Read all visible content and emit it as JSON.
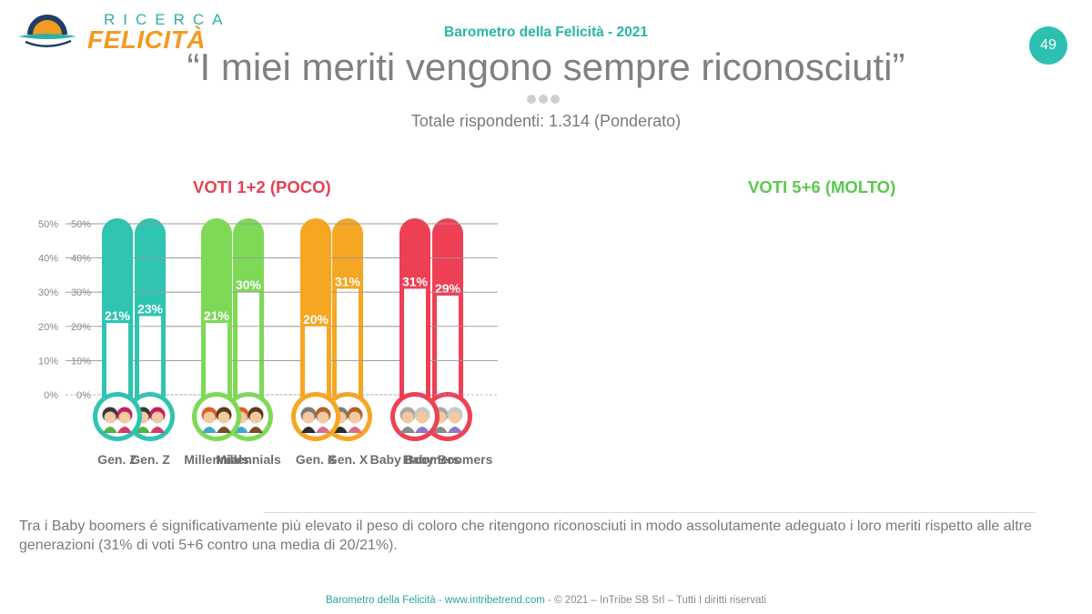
{
  "brand": {
    "line1": "RICERCA",
    "line2": "FELICITÀ",
    "colors": {
      "teal": "#2fb0a4",
      "orange": "#f39a22",
      "navy": "#1f3f66"
    }
  },
  "header": {
    "subtitle": "Barometro della Felicità - 2021",
    "slide_number": "49",
    "title": "“I miei meriti vengono sempre riconosciuti”",
    "respondents": "Totale rispondenti: 1.314 (Ponderato)"
  },
  "chart_data": [
    {
      "type": "bar",
      "title": "VOTI 1+2 (POCO)",
      "title_color": "#e64254",
      "categories": [
        "Gen. Z",
        "Millennials",
        "Gen. X",
        "Baby Boomers"
      ],
      "values": [
        23,
        30,
        31,
        29
      ],
      "value_labels": [
        "23%",
        "30%",
        "31%",
        "29%"
      ],
      "colors": [
        "#2ec4b0",
        "#7ed957",
        "#f5a623",
        "#ee4054"
      ],
      "ylim": [
        0,
        50
      ],
      "y_ticks": [
        0,
        10,
        20,
        30,
        40,
        50
      ],
      "y_tick_labels": [
        "0%",
        "10%",
        "20%",
        "30%",
        "40%",
        "50%"
      ],
      "grid": true,
      "style": "thermometer"
    },
    {
      "type": "bar",
      "title": "VOTI 5+6 (MOLTO)",
      "title_color": "#5ac94e",
      "categories": [
        "Gen. Z",
        "Millennials",
        "Gen. X",
        "Baby Boomers"
      ],
      "values": [
        21,
        21,
        20,
        31
      ],
      "value_labels": [
        "21%",
        "21%",
        "20%",
        "31%"
      ],
      "colors": [
        "#2ec4b0",
        "#7ed957",
        "#f5a623",
        "#ee4054"
      ],
      "ylim": [
        0,
        50
      ],
      "y_ticks": [
        0,
        10,
        20,
        30,
        40,
        50
      ],
      "y_tick_labels": [
        "0%",
        "10%",
        "20%",
        "30%",
        "40%",
        "50%"
      ],
      "grid": true,
      "style": "thermometer"
    }
  ],
  "note": "Tra i Baby boomers é significativamente più elevato il peso di coloro che ritengono riconosciuti in modo assolutamente adeguato i loro meriti rispetto alle altre generazioni (31% di voti 5+6 contro una media di 20/21%).",
  "footer": {
    "part1": "Barometro della Felicità - www.intribetrend.com",
    "separator": " - ",
    "part2": "© 2021 – InTribe SB Srl – Tutti I diritti riservati"
  }
}
